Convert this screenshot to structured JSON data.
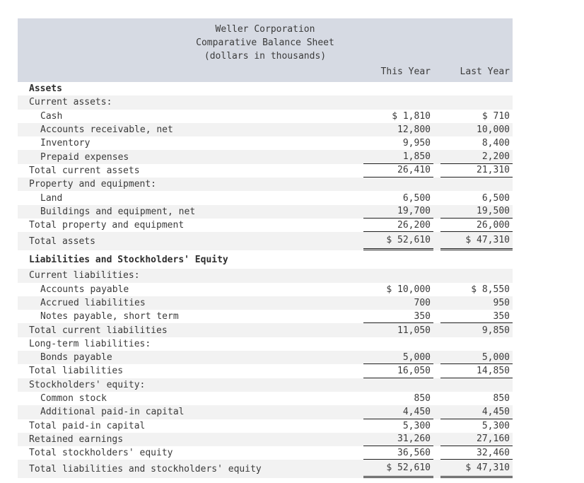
{
  "title": {
    "company": "Weller Corporation",
    "statement": "Comparative Balance Sheet",
    "units": "(dollars in thousands)"
  },
  "columns": {
    "this_year": "This Year",
    "last_year": "Last Year"
  },
  "rows": [
    {
      "label": "Assets",
      "this_year": "",
      "last_year": "",
      "bold": true,
      "indent": 0,
      "underline": "none",
      "tall": false
    },
    {
      "label": "Current assets:",
      "this_year": "",
      "last_year": "",
      "bold": false,
      "indent": 0,
      "underline": "none",
      "tall": false
    },
    {
      "label": "Cash",
      "this_year": "$ 1,810",
      "last_year": "$ 710",
      "bold": false,
      "indent": 1,
      "underline": "none",
      "tall": false
    },
    {
      "label": "Accounts receivable, net",
      "this_year": "12,800",
      "last_year": "10,000",
      "bold": false,
      "indent": 1,
      "underline": "none",
      "tall": false
    },
    {
      "label": "Inventory",
      "this_year": "9,950",
      "last_year": "8,400",
      "bold": false,
      "indent": 1,
      "underline": "none",
      "tall": false
    },
    {
      "label": "Prepaid expenses",
      "this_year": "1,850",
      "last_year": "2,200",
      "bold": false,
      "indent": 1,
      "underline": "single",
      "tall": false
    },
    {
      "label": "Total current assets",
      "this_year": "26,410",
      "last_year": "21,310",
      "bold": false,
      "indent": 0,
      "underline": "single",
      "tall": false
    },
    {
      "label": "Property and equipment:",
      "this_year": "",
      "last_year": "",
      "bold": false,
      "indent": 0,
      "underline": "none",
      "tall": false
    },
    {
      "label": "Land",
      "this_year": "6,500",
      "last_year": "6,500",
      "bold": false,
      "indent": 1,
      "underline": "none",
      "tall": false
    },
    {
      "label": "Buildings and equipment, net",
      "this_year": "19,700",
      "last_year": "19,500",
      "bold": false,
      "indent": 1,
      "underline": "single",
      "tall": false
    },
    {
      "label": "Total property and equipment",
      "this_year": "26,200",
      "last_year": "26,000",
      "bold": false,
      "indent": 0,
      "underline": "single",
      "tall": false
    },
    {
      "label": "Total assets",
      "this_year": "$ 52,610",
      "last_year": "$ 47,310",
      "bold": false,
      "indent": 0,
      "underline": "double",
      "tall": true
    },
    {
      "label": "Liabilities and Stockholders' Equity",
      "this_year": "",
      "last_year": "",
      "bold": true,
      "indent": 0,
      "underline": "none",
      "tall": true
    },
    {
      "label": "Current liabilities:",
      "this_year": "",
      "last_year": "",
      "bold": false,
      "indent": 0,
      "underline": "none",
      "tall": false
    },
    {
      "label": "Accounts payable",
      "this_year": "$ 10,000",
      "last_year": "$ 8,550",
      "bold": false,
      "indent": 1,
      "underline": "none",
      "tall": false
    },
    {
      "label": "Accrued liabilities",
      "this_year": "700",
      "last_year": "950",
      "bold": false,
      "indent": 1,
      "underline": "none",
      "tall": false
    },
    {
      "label": "Notes payable, short term",
      "this_year": "350",
      "last_year": "350",
      "bold": false,
      "indent": 1,
      "underline": "single",
      "tall": false
    },
    {
      "label": "Total current liabilities",
      "this_year": "11,050",
      "last_year": "9,850",
      "bold": false,
      "indent": 0,
      "underline": "none",
      "tall": false
    },
    {
      "label": "Long-term liabilities:",
      "this_year": "",
      "last_year": "",
      "bold": false,
      "indent": 0,
      "underline": "none",
      "tall": false
    },
    {
      "label": "Bonds payable",
      "this_year": "5,000",
      "last_year": "5,000",
      "bold": false,
      "indent": 1,
      "underline": "single",
      "tall": false
    },
    {
      "label": "Total liabilities",
      "this_year": "16,050",
      "last_year": "14,850",
      "bold": false,
      "indent": 0,
      "underline": "single",
      "tall": false
    },
    {
      "label": "Stockholders' equity:",
      "this_year": "",
      "last_year": "",
      "bold": false,
      "indent": 0,
      "underline": "none",
      "tall": false
    },
    {
      "label": "Common stock",
      "this_year": "850",
      "last_year": "850",
      "bold": false,
      "indent": 1,
      "underline": "none",
      "tall": false
    },
    {
      "label": "Additional paid-in capital",
      "this_year": "4,450",
      "last_year": "4,450",
      "bold": false,
      "indent": 1,
      "underline": "single",
      "tall": false
    },
    {
      "label": "Total paid-in capital",
      "this_year": "5,300",
      "last_year": "5,300",
      "bold": false,
      "indent": 0,
      "underline": "none",
      "tall": false
    },
    {
      "label": "Retained earnings",
      "this_year": "31,260",
      "last_year": "27,160",
      "bold": false,
      "indent": 0,
      "underline": "single",
      "tall": false
    },
    {
      "label": "Total stockholders' equity",
      "this_year": "36,560",
      "last_year": "32,460",
      "bold": false,
      "indent": 0,
      "underline": "single",
      "tall": false
    },
    {
      "label": "Total liabilities and stockholders' equity",
      "this_year": "$ 52,610",
      "last_year": "$ 47,310",
      "bold": false,
      "indent": 0,
      "underline": "double",
      "tall": true
    }
  ],
  "colors": {
    "band": "#d6dae3",
    "stripe": "#f2f2f2",
    "text": "#3b3b3b",
    "rule": "#1f1f1f"
  }
}
